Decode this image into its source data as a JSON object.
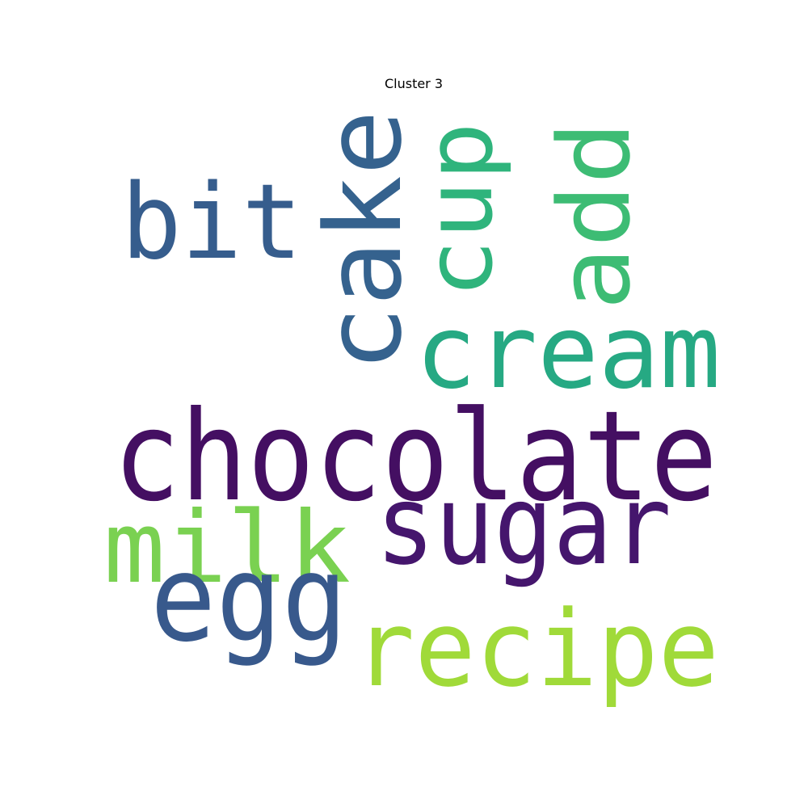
{
  "title": "Cluster 3",
  "words": [
    {
      "text": "chocolate",
      "color": "#440f62",
      "orientation": "horizontal"
    },
    {
      "text": "sugar",
      "color": "#45166d",
      "orientation": "horizontal"
    },
    {
      "text": "cream",
      "color": "#26a983",
      "orientation": "horizontal"
    },
    {
      "text": "add",
      "color": "#3dbc74",
      "orientation": "vertical"
    },
    {
      "text": "cup",
      "color": "#2fb47c",
      "orientation": "vertical"
    },
    {
      "text": "cake",
      "color": "#35628e",
      "orientation": "vertical"
    },
    {
      "text": "bit",
      "color": "#365d8d",
      "orientation": "horizontal"
    },
    {
      "text": "milk",
      "color": "#7ad151",
      "orientation": "horizontal"
    },
    {
      "text": "egg",
      "color": "#38598c",
      "orientation": "horizontal"
    },
    {
      "text": "recipe",
      "color": "#a0da39",
      "orientation": "horizontal"
    }
  ]
}
